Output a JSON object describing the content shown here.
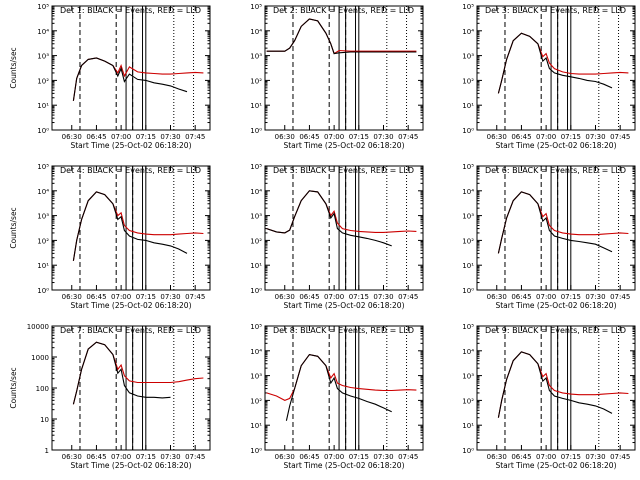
{
  "chart_data": [
    {
      "type": "line",
      "title": "Det 1: BLACK = Events, RED = LLD",
      "xlabel": "Start Time (25-Oct-02 06:18:20)",
      "ylabel": "Counts/sec",
      "x_ticks": [
        "06:30",
        "06:45",
        "07:00",
        "07:15",
        "07:30",
        "07:45"
      ],
      "y_ticks": [
        "10⁰",
        "10¹",
        "10²",
        "10³",
        "10⁴",
        "10⁵"
      ],
      "ylim": [
        1,
        100000
      ],
      "log_y": true,
      "series": [
        {
          "name": "Events",
          "color": "#000000",
          "x": [
            "06:31",
            "06:33",
            "06:36",
            "06:40",
            "06:45",
            "06:50",
            "06:55",
            "06:58",
            "07:00",
            "07:02",
            "07:05",
            "07:10",
            "07:15",
            "07:20",
            "07:25",
            "07:30",
            "07:35",
            "07:40"
          ],
          "y": [
            15,
            120,
            400,
            700,
            800,
            600,
            400,
            150,
            300,
            90,
            180,
            110,
            100,
            80,
            70,
            60,
            45,
            35
          ]
        },
        {
          "name": "LLD",
          "color": "#cc0000",
          "x": [
            "06:31",
            "06:33",
            "06:36",
            "06:40",
            "06:45",
            "06:50",
            "06:55",
            "06:58",
            "07:00",
            "07:02",
            "07:05",
            "07:10",
            "07:15",
            "07:20",
            "07:25",
            "07:30",
            "07:35",
            "07:40",
            "07:45",
            "07:50"
          ],
          "y": [
            15,
            120,
            400,
            700,
            800,
            600,
            400,
            200,
            400,
            150,
            350,
            220,
            200,
            190,
            180,
            180,
            190,
            200,
            210,
            200
          ]
        }
      ]
    },
    {
      "type": "line",
      "title": "Det 2: BLACK = Events, RED = LLD",
      "xlabel": "Start Time (25-Oct-02 06:18:20)",
      "ylabel": "",
      "x_ticks": [
        "06:30",
        "06:45",
        "07:00",
        "07:15",
        "07:30",
        "07:45"
      ],
      "y_ticks": [
        "10⁰",
        "10¹",
        "10²",
        "10³",
        "10⁴",
        "10⁵"
      ],
      "ylim": [
        1,
        100000
      ],
      "log_y": true,
      "series": [
        {
          "name": "Events",
          "color": "#000000",
          "x": [
            "06:19",
            "06:30",
            "06:33",
            "06:36",
            "06:40",
            "06:45",
            "06:50",
            "06:55",
            "06:58",
            "07:00",
            "07:03",
            "07:10",
            "07:20",
            "07:30",
            "07:40",
            "07:50"
          ],
          "y": [
            1500,
            1500,
            2000,
            4000,
            15000,
            30000,
            25000,
            8000,
            3000,
            1200,
            1300,
            1400,
            1400,
            1400,
            1400,
            1400
          ]
        },
        {
          "name": "LLD",
          "color": "#cc0000",
          "x": [
            "06:19",
            "06:30",
            "06:33",
            "06:36",
            "06:40",
            "06:45",
            "06:50",
            "06:55",
            "06:58",
            "07:00",
            "07:03",
            "07:10",
            "07:20",
            "07:30",
            "07:40",
            "07:50"
          ],
          "y": [
            1500,
            1500,
            2000,
            4000,
            15000,
            30000,
            25000,
            8000,
            3000,
            1200,
            1600,
            1500,
            1500,
            1500,
            1500,
            1500
          ]
        }
      ]
    },
    {
      "type": "line",
      "title": "Det 3: BLACK = Events, RED = LLD",
      "xlabel": "Start Time (25-Oct-02 06:18:20)",
      "ylabel": "",
      "x_ticks": [
        "06:30",
        "06:45",
        "07:00",
        "07:15",
        "07:30",
        "07:45"
      ],
      "y_ticks": [
        "10⁰",
        "10¹",
        "10²",
        "10³",
        "10⁴",
        "10⁵"
      ],
      "ylim": [
        1,
        100000
      ],
      "log_y": true,
      "series": [
        {
          "name": "Events",
          "color": "#000000",
          "x": [
            "06:31",
            "06:33",
            "06:36",
            "06:40",
            "06:45",
            "06:50",
            "06:55",
            "06:58",
            "07:00",
            "07:02",
            "07:05",
            "07:10",
            "07:15",
            "07:20",
            "07:25",
            "07:30",
            "07:35",
            "07:40"
          ],
          "y": [
            30,
            100,
            700,
            4000,
            8000,
            6000,
            3000,
            600,
            800,
            300,
            200,
            160,
            140,
            120,
            100,
            90,
            70,
            50
          ]
        },
        {
          "name": "LLD",
          "color": "#cc0000",
          "x": [
            "06:31",
            "06:33",
            "06:36",
            "06:40",
            "06:45",
            "06:50",
            "06:55",
            "06:58",
            "07:00",
            "07:02",
            "07:05",
            "07:10",
            "07:15",
            "07:20",
            "07:25",
            "07:30",
            "07:35",
            "07:40",
            "07:45",
            "07:50"
          ],
          "y": [
            30,
            100,
            700,
            4000,
            8000,
            6000,
            3000,
            900,
            1200,
            500,
            300,
            220,
            190,
            180,
            180,
            180,
            190,
            200,
            210,
            200
          ]
        }
      ]
    },
    {
      "type": "line",
      "title": "Det 4: BLACK = Events, RED = LLD",
      "xlabel": "Start Time (25-Oct-02 06:18:20)",
      "ylabel": "Counts/sec",
      "x_ticks": [
        "06:30",
        "06:45",
        "07:00",
        "07:15",
        "07:30",
        "07:45"
      ],
      "y_ticks": [
        "10⁰",
        "10¹",
        "10²",
        "10³",
        "10⁴",
        "10⁵"
      ],
      "ylim": [
        1,
        100000
      ],
      "log_y": true,
      "series": [
        {
          "name": "Events",
          "color": "#000000",
          "x": [
            "06:31",
            "06:33",
            "06:36",
            "06:40",
            "06:45",
            "06:50",
            "06:55",
            "06:58",
            "07:00",
            "07:02",
            "07:05",
            "07:10",
            "07:15",
            "07:20",
            "07:25",
            "07:30",
            "07:35",
            "07:40"
          ],
          "y": [
            15,
            100,
            700,
            4000,
            9000,
            7000,
            3000,
            700,
            900,
            250,
            150,
            110,
            100,
            80,
            70,
            60,
            45,
            30
          ]
        },
        {
          "name": "LLD",
          "color": "#cc0000",
          "x": [
            "06:31",
            "06:33",
            "06:36",
            "06:40",
            "06:45",
            "06:50",
            "06:55",
            "06:58",
            "07:00",
            "07:02",
            "07:05",
            "07:10",
            "07:15",
            "07:20",
            "07:25",
            "07:30",
            "07:35",
            "07:40",
            "07:45",
            "07:50"
          ],
          "y": [
            15,
            100,
            700,
            4000,
            9000,
            7000,
            3000,
            1000,
            1300,
            400,
            250,
            200,
            180,
            170,
            170,
            170,
            180,
            190,
            200,
            190
          ]
        }
      ]
    },
    {
      "type": "line",
      "title": "Det 5: BLACK = Events, RED = LLD",
      "xlabel": "Start Time (25-Oct-02 06:18:20)",
      "ylabel": "",
      "x_ticks": [
        "06:30",
        "06:45",
        "07:00",
        "07:15",
        "07:30",
        "07:45"
      ],
      "y_ticks": [
        "10⁰",
        "10¹",
        "10²",
        "10³",
        "10⁴",
        "10⁵"
      ],
      "ylim": [
        1,
        100000
      ],
      "log_y": true,
      "series": [
        {
          "name": "Events",
          "color": "#000000",
          "x": [
            "06:19",
            "06:25",
            "06:30",
            "06:33",
            "06:36",
            "06:40",
            "06:45",
            "06:50",
            "06:55",
            "06:58",
            "07:00",
            "07:02",
            "07:05",
            "07:10",
            "07:15",
            "07:20",
            "07:25",
            "07:30",
            "07:35"
          ],
          "y": [
            300,
            220,
            200,
            260,
            900,
            4000,
            10000,
            9000,
            3000,
            800,
            1200,
            300,
            200,
            160,
            140,
            120,
            100,
            80,
            60
          ]
        },
        {
          "name": "LLD",
          "color": "#cc0000",
          "x": [
            "06:19",
            "06:25",
            "06:30",
            "06:33",
            "06:36",
            "06:40",
            "06:45",
            "06:50",
            "06:55",
            "06:58",
            "07:00",
            "07:02",
            "07:05",
            "07:10",
            "07:15",
            "07:20",
            "07:25",
            "07:30",
            "07:35",
            "07:40",
            "07:45",
            "07:50"
          ],
          "y": [
            300,
            220,
            200,
            260,
            900,
            4000,
            10000,
            9000,
            3000,
            1000,
            1500,
            500,
            300,
            250,
            230,
            220,
            210,
            210,
            220,
            230,
            240,
            230
          ]
        }
      ]
    },
    {
      "type": "line",
      "title": "Det 6: BLACK = Events, RED = LLD",
      "xlabel": "Start Time (25-Oct-02 06:18:20)",
      "ylabel": "",
      "x_ticks": [
        "06:30",
        "06:45",
        "07:00",
        "07:15",
        "07:30",
        "07:45"
      ],
      "y_ticks": [
        "10⁰",
        "10¹",
        "10²",
        "10³",
        "10⁴",
        "10⁵"
      ],
      "ylim": [
        1,
        100000
      ],
      "log_y": true,
      "series": [
        {
          "name": "Events",
          "color": "#000000",
          "x": [
            "06:31",
            "06:33",
            "06:36",
            "06:40",
            "06:45",
            "06:50",
            "06:55",
            "06:58",
            "07:00",
            "07:02",
            "07:05",
            "07:10",
            "07:15",
            "07:20",
            "07:25",
            "07:30",
            "07:35",
            "07:40"
          ],
          "y": [
            30,
            120,
            800,
            4000,
            9000,
            7000,
            3000,
            600,
            800,
            250,
            150,
            120,
            100,
            90,
            80,
            70,
            50,
            35
          ]
        },
        {
          "name": "LLD",
          "color": "#cc0000",
          "x": [
            "06:31",
            "06:33",
            "06:36",
            "06:40",
            "06:45",
            "06:50",
            "06:55",
            "06:58",
            "07:00",
            "07:02",
            "07:05",
            "07:10",
            "07:15",
            "07:20",
            "07:25",
            "07:30",
            "07:35",
            "07:40",
            "07:45",
            "07:50"
          ],
          "y": [
            30,
            120,
            800,
            4000,
            9000,
            7000,
            3000,
            900,
            1200,
            400,
            250,
            200,
            180,
            170,
            170,
            170,
            180,
            190,
            200,
            190
          ]
        }
      ]
    },
    {
      "type": "line",
      "title": "Det 7: BLACK = Events, RED = LLD",
      "xlabel": "Start Time (25-Oct-02 06:18:20)",
      "ylabel": "Counts/sec",
      "x_ticks": [
        "06:30",
        "06:45",
        "07:00",
        "07:15",
        "07:30",
        "07:45"
      ],
      "y_ticks": [
        "1",
        "10",
        "100",
        "1000",
        "10000"
      ],
      "ylim": [
        1,
        10000
      ],
      "log_y": true,
      "series": [
        {
          "name": "Events",
          "color": "#000000",
          "x": [
            "06:31",
            "06:33",
            "06:36",
            "06:40",
            "06:45",
            "06:50",
            "06:55",
            "06:58",
            "07:00",
            "07:02",
            "07:05",
            "07:10",
            "07:15",
            "07:20",
            "07:25",
            "07:30"
          ],
          "y": [
            30,
            80,
            400,
            1800,
            3000,
            2500,
            1200,
            300,
            400,
            120,
            70,
            55,
            50,
            50,
            48,
            50
          ]
        },
        {
          "name": "LLD",
          "color": "#cc0000",
          "x": [
            "06:31",
            "06:33",
            "06:36",
            "06:40",
            "06:45",
            "06:50",
            "06:55",
            "06:58",
            "07:00",
            "07:02",
            "07:05",
            "07:10",
            "07:15",
            "07:20",
            "07:25",
            "07:30",
            "07:35",
            "07:40",
            "07:45",
            "07:50"
          ],
          "y": [
            30,
            80,
            400,
            1800,
            3000,
            2500,
            1200,
            400,
            550,
            250,
            170,
            150,
            150,
            150,
            150,
            150,
            160,
            180,
            200,
            210
          ]
        }
      ]
    },
    {
      "type": "line",
      "title": "Det 8: BLACK = Events, RED = LLD",
      "xlabel": "Start Time (25-Oct-02 06:18:20)",
      "ylabel": "",
      "x_ticks": [
        "06:30",
        "06:45",
        "07:00",
        "07:15",
        "07:30",
        "07:45"
      ],
      "y_ticks": [
        "10⁰",
        "10¹",
        "10²",
        "10³",
        "10⁴",
        "10⁵"
      ],
      "ylim": [
        1,
        100000
      ],
      "log_y": true,
      "series": [
        {
          "name": "Events",
          "color": "#000000",
          "x": [
            "06:31",
            "06:33",
            "06:36",
            "06:40",
            "06:45",
            "06:50",
            "06:55",
            "06:58",
            "07:00",
            "07:02",
            "07:05",
            "07:10",
            "07:15",
            "07:20",
            "07:25",
            "07:30",
            "07:35"
          ],
          "y": [
            15,
            60,
            300,
            2500,
            7000,
            6000,
            2500,
            500,
            800,
            300,
            200,
            150,
            120,
            90,
            70,
            50,
            35
          ]
        },
        {
          "name": "LLD",
          "color": "#cc0000",
          "x": [
            "06:19",
            "06:25",
            "06:30",
            "06:33",
            "06:36",
            "06:40",
            "06:45",
            "06:50",
            "06:55",
            "06:58",
            "07:00",
            "07:02",
            "07:05",
            "07:10",
            "07:15",
            "07:20",
            "07:25",
            "07:30",
            "07:35",
            "07:40",
            "07:45",
            "07:50"
          ],
          "y": [
            200,
            150,
            100,
            120,
            300,
            2500,
            7000,
            6000,
            2500,
            800,
            1200,
            500,
            400,
            330,
            300,
            280,
            260,
            250,
            250,
            260,
            270,
            260
          ]
        }
      ]
    },
    {
      "type": "line",
      "title": "Det 9: BLACK = Events, RED = LLD",
      "xlabel": "Start Time (25-Oct-02 06:18:20)",
      "ylabel": "",
      "x_ticks": [
        "06:30",
        "06:45",
        "07:00",
        "07:15",
        "07:30",
        "07:45"
      ],
      "y_ticks": [
        "10⁰",
        "10¹",
        "10²",
        "10³",
        "10⁴",
        "10⁵"
      ],
      "ylim": [
        1,
        100000
      ],
      "log_y": true,
      "series": [
        {
          "name": "Events",
          "color": "#000000",
          "x": [
            "06:31",
            "06:33",
            "06:36",
            "06:40",
            "06:45",
            "06:50",
            "06:55",
            "06:58",
            "07:00",
            "07:02",
            "07:05",
            "07:10",
            "07:15",
            "07:20",
            "07:25",
            "07:30",
            "07:35",
            "07:40"
          ],
          "y": [
            20,
            100,
            700,
            4000,
            9000,
            7000,
            3000,
            600,
            800,
            250,
            150,
            120,
            100,
            80,
            70,
            60,
            45,
            30
          ]
        },
        {
          "name": "LLD",
          "color": "#cc0000",
          "x": [
            "06:31",
            "06:33",
            "06:36",
            "06:40",
            "06:45",
            "06:50",
            "06:55",
            "06:58",
            "07:00",
            "07:02",
            "07:05",
            "07:10",
            "07:15",
            "07:20",
            "07:25",
            "07:30",
            "07:35",
            "07:40",
            "07:45",
            "07:50"
          ],
          "y": [
            20,
            100,
            700,
            4000,
            9000,
            7000,
            3000,
            900,
            1200,
            400,
            250,
            200,
            180,
            170,
            170,
            170,
            180,
            190,
            200,
            190
          ]
        }
      ]
    }
  ]
}
